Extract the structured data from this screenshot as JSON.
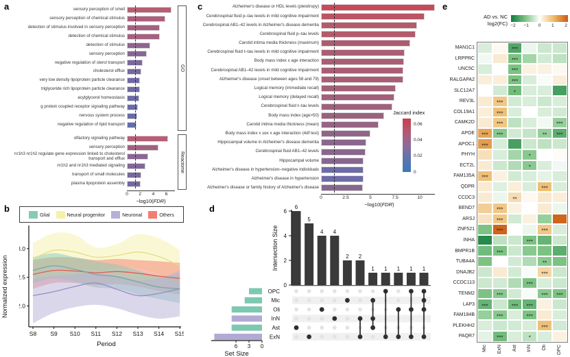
{
  "panels": {
    "a": "a",
    "b": "b",
    "c": "c",
    "d": "d",
    "e": "e"
  },
  "axis_labels": {
    "fdr_prefix": "−log10(",
    "fdr_italic": "FDR",
    "fdr_suffix": ")"
  },
  "chart_data": [
    {
      "panel": "a",
      "type": "bar",
      "orientation": "horizontal",
      "xlabel": "−log10(FDR)",
      "xticks": [
        0,
        2,
        4,
        6
      ],
      "xlim": [
        0,
        7.3
      ],
      "threshold_line": 1.3,
      "groups": [
        {
          "facet": "GO",
          "bars": [
            {
              "label": "sensory perception of smell",
              "value": 6.8,
              "color": "#b95d73"
            },
            {
              "label": "sensory perception of chemical stimulus",
              "value": 5.8,
              "color": "#ad5f7d"
            },
            {
              "label": "detection of stimulus involved in sensory perception",
              "value": 5.0,
              "color": "#a5617f"
            },
            {
              "label": "detection of chemical stimulus",
              "value": 5.0,
              "color": "#a5617f"
            },
            {
              "label": "detection of stimulus",
              "value": 3.5,
              "color": "#8f6690"
            },
            {
              "label": "sensory perception",
              "value": 3.0,
              "color": "#876795"
            },
            {
              "label": "negative regulation of sterol transport",
              "value": 2.4,
              "color": "#7d689c"
            },
            {
              "label": "cholesterol efflux",
              "value": 2.2,
              "color": "#77699e"
            },
            {
              "label": "very low density lipoprotein particle clearance",
              "value": 2.0,
              "color": "#6f6aa4"
            },
            {
              "label": "triglyceride rich lipoprotein particle clearance",
              "value": 2.0,
              "color": "#6f6aa4"
            },
            {
              "label": "acylglycerol homeostasis",
              "value": 1.9,
              "color": "#6d6aa5"
            },
            {
              "label": "g protein coupled receptor signaling pathway",
              "value": 1.7,
              "color": "#686ba8"
            },
            {
              "label": "nervous system process",
              "value": 1.6,
              "color": "#666baa"
            },
            {
              "label": "negative regulation of lipid transport",
              "value": 1.5,
              "color": "#646caa"
            }
          ]
        },
        {
          "facet": "Reactome",
          "bars": [
            {
              "label": "olfactory signaling pathway",
              "value": 6.3,
              "color": "#b75e76"
            },
            {
              "label": "sensory perception",
              "value": 4.8,
              "color": "#a36180"
            },
            {
              "label": "nr1h3 nr1h2 regulate gene expression linked to cholesterol transport and efflux",
              "value": 3.2,
              "color": "#8b6793"
            },
            {
              "label": "nr1h2 and nr1h3 mediated signaling",
              "value": 2.8,
              "color": "#836897"
            },
            {
              "label": "transport of small molecules",
              "value": 2.2,
              "color": "#77699e"
            },
            {
              "label": "plasma lipoprotein assembly",
              "value": 2.1,
              "color": "#73699f"
            }
          ]
        }
      ]
    },
    {
      "panel": "b",
      "type": "line",
      "xlabel": "Period",
      "ylabel": "Normalized expression",
      "categories": [
        "S8",
        "S9",
        "S10",
        "S11",
        "S12",
        "S13",
        "S14",
        "S15"
      ],
      "yticks": [
        "2.0",
        "2.5",
        "3.0"
      ],
      "ylim": [
        1.66,
        3.38
      ],
      "legend_order": [
        "Glial",
        "Neural progenitor",
        "Neuronal",
        "Others"
      ],
      "series": [
        {
          "name": "Glial",
          "fill": "#85cbb6",
          "line": "#74a8a2",
          "values": [
            2.62,
            2.7,
            2.64,
            2.55,
            2.51,
            2.42,
            2.33,
            2.3
          ],
          "upper": [
            2.85,
            2.92,
            2.85,
            2.78,
            2.72,
            2.62,
            2.52,
            2.55
          ],
          "lower": [
            2.4,
            2.48,
            2.42,
            2.32,
            2.3,
            2.2,
            2.12,
            2.05
          ]
        },
        {
          "name": "Neural progenitor",
          "fill": "#f6f1a9",
          "line": "#e4dd85",
          "values": [
            2.82,
            2.97,
            2.94,
            2.85,
            2.88,
            2.94,
            2.86,
            2.7
          ],
          "upper": [
            3.1,
            3.27,
            3.24,
            3.02,
            3.08,
            3.25,
            3.18,
            2.98
          ],
          "lower": [
            2.52,
            2.7,
            2.66,
            2.62,
            2.66,
            2.65,
            2.55,
            2.35
          ]
        },
        {
          "name": "Neuronal",
          "fill": "#b7afd8",
          "line": "#968cc2",
          "values": [
            2.18,
            2.25,
            2.34,
            2.4,
            2.29,
            2.18,
            2.22,
            2.3
          ],
          "upper": [
            2.48,
            2.52,
            2.55,
            2.58,
            2.52,
            2.45,
            2.48,
            2.62
          ],
          "lower": [
            1.7,
            1.88,
            1.98,
            2.02,
            1.96,
            1.85,
            1.78,
            1.82
          ]
        },
        {
          "name": "Others",
          "fill": "#f37e70",
          "line": "#e25a4d",
          "values": [
            2.55,
            2.62,
            2.61,
            2.58,
            2.6,
            2.57,
            2.52,
            2.48
          ],
          "upper": [
            2.8,
            2.85,
            2.84,
            2.8,
            2.82,
            2.8,
            2.78,
            2.75
          ],
          "lower": [
            2.3,
            2.4,
            2.4,
            2.36,
            2.38,
            2.34,
            2.26,
            2.2
          ]
        }
      ]
    },
    {
      "panel": "c",
      "type": "bar",
      "orientation": "horizontal",
      "xlabel": "−log10(FDR)",
      "xticks": [
        0,
        2.5,
        5.0,
        7.5,
        10.0
      ],
      "xlim": [
        0,
        11.8
      ],
      "threshold_line": 1.3,
      "legend": {
        "title": "Jaccard index",
        "ticks": [
          "0.06",
          "0.04",
          "0.02",
          "0"
        ],
        "gradient": [
          "#c73e4e",
          "#b25a71",
          "#8f6a99",
          "#5d74ae",
          "#3a78ba"
        ]
      },
      "bars": [
        {
          "label": "Alzheimer's disease or HDL levels (pleiotropy)",
          "value": 11.5,
          "color": "#c84a58"
        },
        {
          "label": "Cerebrospinal fluid p–tau levels in mild cognitive impairment",
          "value": 10.5,
          "color": "#b95565"
        },
        {
          "label": "Cerebrospinal AB1–42 levels in Alzheimer's disease dementia",
          "value": 9.7,
          "color": "#b35a6b"
        },
        {
          "label": "Cerebrospinal fluid p–tau levels",
          "value": 9.6,
          "color": "#b35a6b"
        },
        {
          "label": "Carotid intima media thickness (maximum)",
          "value": 9.0,
          "color": "#ad5c70"
        },
        {
          "label": "Cerebrospinal fluid t–tau levels in mild cognitive impairment",
          "value": 8.5,
          "color": "#aa5e74"
        },
        {
          "label": "Body mass index x age interaction",
          "value": 8.4,
          "color": "#a95e75"
        },
        {
          "label": "Cerebrospinal AB1–42 levels in mild cognitive impairment",
          "value": 8.3,
          "color": "#a95e75"
        },
        {
          "label": "Alzheimer's disease (onset between ages 58 and 79)",
          "value": 8.3,
          "color": "#a95e75"
        },
        {
          "label": "Logical memory (immediate recall)",
          "value": 7.6,
          "color": "#a36079"
        },
        {
          "label": "Logical memory (delayed recall)",
          "value": 7.4,
          "color": "#a2607a"
        },
        {
          "label": "Cerebrospinal fluid t–tau levels",
          "value": 7.2,
          "color": "#a0617c"
        },
        {
          "label": "Body mass index (age>50)",
          "value": 6.4,
          "color": "#9b627f"
        },
        {
          "label": "Carotid intima media thickness (mean)",
          "value": 5.8,
          "color": "#966484"
        },
        {
          "label": "Body mass index x sex x age interaction (4df test)",
          "value": 5.0,
          "color": "#8f6689"
        },
        {
          "label": "Hippocampal volume in Alzheimer's disease dementia",
          "value": 4.6,
          "color": "#8b668d"
        },
        {
          "label": "Cerebrospinal fluid AB1–42 levels",
          "value": 4.5,
          "color": "#8a668d"
        },
        {
          "label": "Hippocampal volume",
          "value": 4.3,
          "color": "#88678f"
        },
        {
          "label": "Alzheimer's disease in hypertension–negative individuals",
          "value": 4.3,
          "color": "#6f6aa8"
        },
        {
          "label": "Alzheimer's disease in hypertension",
          "value": 4.3,
          "color": "#6f6aa8"
        },
        {
          "label": "Alzheimer's disease or family history of Alzheimer's disease",
          "value": 4.2,
          "color": "#87678f"
        }
      ]
    },
    {
      "panel": "d",
      "type": "upset",
      "ylabel": "Intersection Size",
      "yticks": [
        0,
        2,
        4,
        6
      ],
      "set_size_label": "Set Size",
      "set_size_ticks": [
        6,
        3,
        0
      ],
      "bar_color": "#3a3a3a",
      "sets": [
        {
          "name": "OPC",
          "size": 3,
          "color": "#7ec8b2"
        },
        {
          "name": "Mic",
          "size": 4,
          "color": "#7ec8b2"
        },
        {
          "name": "Oli",
          "size": 7,
          "color": "#7ec8b2"
        },
        {
          "name": "InN",
          "size": 7,
          "color": "#b2aad4"
        },
        {
          "name": "Ast",
          "size": 7,
          "color": "#7ec8b2"
        },
        {
          "name": "ExN",
          "size": 11,
          "color": "#b2aad4"
        }
      ],
      "intersections": [
        {
          "size": 6,
          "sets": [
            "Ast"
          ]
        },
        {
          "size": 5,
          "sets": [
            "ExN"
          ]
        },
        {
          "size": 4,
          "sets": [
            "Oli"
          ]
        },
        {
          "size": 4,
          "sets": [
            "InN"
          ]
        },
        {
          "size": 2,
          "sets": [
            "Mic"
          ]
        },
        {
          "size": 2,
          "sets": [
            "InN",
            "ExN"
          ]
        },
        {
          "size": 1,
          "sets": [
            "Mic",
            "InN",
            "Ast"
          ]
        },
        {
          "size": 1,
          "sets": [
            "OPC",
            "ExN"
          ]
        },
        {
          "size": 1,
          "sets": [
            "Oli",
            "ExN"
          ]
        },
        {
          "size": 1,
          "sets": [
            "OPC",
            "Oli",
            "ExN"
          ]
        },
        {
          "size": 1,
          "sets": [
            "OPC",
            "Mic",
            "Oli",
            "ExN"
          ]
        }
      ]
    },
    {
      "panel": "e",
      "type": "heatmap",
      "legend_title_line1": "AD vs. NC",
      "legend_title_line2": "log2(FC)",
      "legend_ticks": [
        "−2",
        "−1",
        "0",
        "1",
        "2"
      ],
      "color_neg": "#117a40",
      "color_neg_mid": "#7cc383",
      "color_mid": "#ffffff",
      "color_pos_mid": "#ecb968",
      "color_pos": "#cc5a13",
      "columns": [
        "Mic",
        "ExN",
        "Ast",
        "InN",
        "Oli",
        "OPC"
      ],
      "genes": [
        "MAN1C1",
        "LRPPRC",
        "UNC5C",
        "RALGAPA2",
        "SLC12A7",
        "REV3L",
        "COL19A1",
        "CAMK2D",
        "APOE",
        "APOC1",
        "PHYH",
        "ECT2L",
        "FAM135A",
        "QDPR",
        "CCDC3",
        "BEND7",
        "ARSJ",
        "ZNF521",
        "INHA",
        "BMPR1B",
        "TUBA4A",
        "DNAJB2",
        "CCDC113",
        "TENM2",
        "LAP3",
        "FAM184B",
        "PLEKHH2",
        "PAQR7"
      ],
      "values": [
        [
          -0.3,
          0.1,
          -1.4,
          -0.15,
          -0.4,
          -0.4
        ],
        [
          -0.1,
          0.3,
          -1.0,
          -0.7,
          -0.35,
          -0.5
        ],
        [
          -0.3,
          0.0,
          -1.0,
          0.2,
          0.2,
          0.1
        ],
        [
          0.25,
          0.25,
          -1.0,
          -0.3,
          -0.05,
          0.25
        ],
        [
          0.0,
          -0.35,
          -1.1,
          -0.3,
          -0.3,
          -1.5
        ],
        [
          0.3,
          0.8,
          -0.35,
          -0.3,
          -0.4,
          -0.3
        ],
        [
          0.25,
          0.9,
          -0.3,
          0.0,
          -0.3,
          -0.35
        ],
        [
          0.3,
          0.8,
          -0.5,
          -0.3,
          -0.1,
          -0.8
        ],
        [
          1.2,
          -0.9,
          -0.35,
          -0.45,
          -0.8,
          -1.3
        ],
        [
          1.3,
          -0.3,
          -1.5,
          -0.4,
          -0.5,
          -0.4
        ],
        [
          0.45,
          -0.3,
          -0.7,
          -0.9,
          0.0,
          0.05
        ],
        [
          0.3,
          -0.4,
          -0.6,
          -0.9,
          -0.3,
          -0.1
        ],
        [
          0.9,
          0.2,
          -0.35,
          -0.3,
          -0.2,
          -0.3
        ],
        [
          0.3,
          -0.25,
          0.25,
          -0.3,
          0.9,
          -0.3
        ],
        [
          0.3,
          -0.15,
          0.5,
          0.1,
          0.35,
          0.25
        ],
        [
          0.7,
          0.8,
          0.2,
          0.0,
          0.3,
          -0.15
        ],
        [
          0.4,
          0.8,
          -0.35,
          0.2,
          -0.8,
          1.9
        ],
        [
          -1.0,
          1.9,
          0.0,
          -0.15,
          0.8,
          -0.3
        ],
        [
          -1.8,
          -0.5,
          -0.4,
          -1.0,
          -1.2,
          -0.4
        ],
        [
          -1.1,
          -1.0,
          -0.4,
          -0.9,
          -1.0,
          -1.3
        ],
        [
          -1.0,
          0.0,
          -0.35,
          -0.6,
          -0.9,
          -1.0
        ],
        [
          -0.4,
          0.3,
          -0.35,
          -0.05,
          0.6,
          -0.4
        ],
        [
          -0.4,
          -0.35,
          -0.6,
          -1.0,
          -0.3,
          -0.4
        ],
        [
          -1.0,
          -0.9,
          -0.35,
          -0.05,
          -0.9,
          -1.0
        ],
        [
          -1.2,
          -0.4,
          -1.1,
          -1.2,
          0.2,
          -0.4
        ],
        [
          -0.8,
          -0.9,
          -0.3,
          -1.0,
          0.3,
          -0.3
        ],
        [
          -0.3,
          -0.4,
          -0.35,
          -0.3,
          0.9,
          -0.35
        ],
        [
          -0.2,
          -1.1,
          -0.3,
          -0.5,
          -0.3,
          0.2
        ]
      ],
      "stars": [
        [
          "",
          "",
          "***",
          "",
          "",
          ""
        ],
        [
          "",
          "",
          "***",
          "",
          "",
          ""
        ],
        [
          "",
          "",
          "***",
          "",
          "",
          ""
        ],
        [
          "",
          "",
          "***",
          "",
          "",
          ""
        ],
        [
          "",
          "",
          "*",
          "",
          "",
          ""
        ],
        [
          "",
          "***",
          "",
          "",
          "",
          ""
        ],
        [
          "",
          "***",
          "",
          "",
          "",
          ""
        ],
        [
          "",
          "***",
          "",
          "",
          "",
          "***"
        ],
        [
          "***",
          "***",
          "",
          "",
          "**",
          "***"
        ],
        [
          "***",
          "",
          "",
          "",
          "",
          ""
        ],
        [
          "",
          "",
          "",
          "*",
          "",
          ""
        ],
        [
          "",
          "",
          "",
          "*",
          "",
          ""
        ],
        [
          "***",
          "",
          "",
          "",
          "",
          ""
        ],
        [
          "",
          "",
          "",
          "",
          "***",
          ""
        ],
        [
          "",
          "",
          "**",
          "",
          "",
          ""
        ],
        [
          "",
          "***",
          "",
          "",
          "",
          ""
        ],
        [
          "",
          "***",
          "",
          "",
          "",
          ""
        ],
        [
          "",
          "***",
          "",
          "",
          "***",
          ""
        ],
        [
          "",
          "",
          "",
          "***",
          "",
          ""
        ],
        [
          "",
          "***",
          "",
          "",
          "",
          ""
        ],
        [
          "",
          "",
          "",
          "",
          "**",
          ""
        ],
        [
          "",
          "",
          "",
          "",
          "***",
          ""
        ],
        [
          "",
          "",
          "",
          "***",
          "",
          ""
        ],
        [
          "",
          "***",
          "",
          "",
          "***",
          "***"
        ],
        [
          "***",
          "",
          "***",
          "***",
          "",
          ""
        ],
        [
          "",
          "***",
          "",
          "***",
          "",
          ""
        ],
        [
          "",
          "",
          "",
          "",
          "***",
          ""
        ],
        [
          "",
          "***",
          "",
          "*",
          "",
          ""
        ]
      ]
    }
  ]
}
